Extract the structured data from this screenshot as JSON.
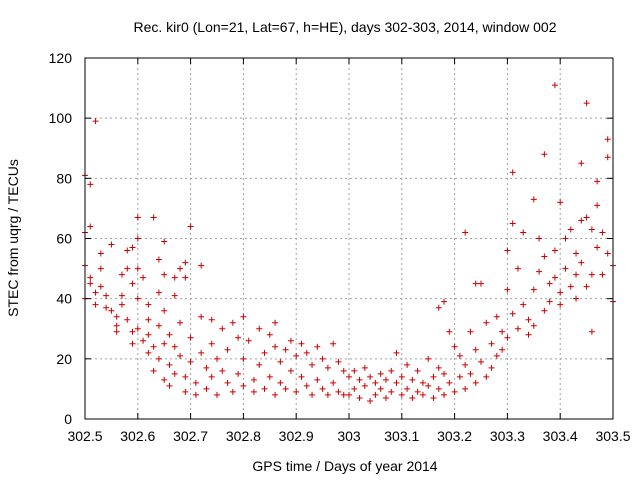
{
  "chart_data": {
    "type": "scatter",
    "title": "Rec. kir0 (Lon=21, Lat=67, h=HE), days 302-303, 2014, window 002",
    "xlabel": "GPS time / Days of year 2014",
    "ylabel": "STEC from uqrg / TECUs",
    "xlim": [
      302.5,
      303.5
    ],
    "ylim": [
      0,
      120
    ],
    "xticks": [
      "302.5",
      "302.6",
      "302.7",
      "302.8",
      "302.9",
      "303",
      "303.1",
      "303.2",
      "303.3",
      "303.4",
      "303.5"
    ],
    "yticks": [
      "0",
      "20",
      "40",
      "60",
      "80",
      "100",
      "120"
    ],
    "grid": true,
    "marker": "+",
    "color": "#cc0000",
    "points": [
      [
        302.5,
        81
      ],
      [
        302.51,
        78
      ],
      [
        302.51,
        64
      ],
      [
        302.5,
        62
      ],
      [
        302.52,
        99
      ],
      [
        302.5,
        51
      ],
      [
        302.51,
        47
      ],
      [
        302.51,
        45
      ],
      [
        302.52,
        42
      ],
      [
        302.5,
        40
      ],
      [
        302.52,
        38
      ],
      [
        302.53,
        55
      ],
      [
        302.53,
        50
      ],
      [
        302.53,
        44
      ],
      [
        302.54,
        41
      ],
      [
        302.54,
        37
      ],
      [
        302.55,
        58
      ],
      [
        302.55,
        36
      ],
      [
        302.56,
        34
      ],
      [
        302.56,
        31
      ],
      [
        302.57,
        48
      ],
      [
        302.57,
        41
      ],
      [
        302.58,
        56
      ],
      [
        302.58,
        50
      ],
      [
        302.58,
        33
      ],
      [
        302.59,
        57
      ],
      [
        302.59,
        45
      ],
      [
        302.59,
        29
      ],
      [
        302.59,
        25
      ],
      [
        302.6,
        67
      ],
      [
        302.6,
        60
      ],
      [
        302.6,
        50
      ],
      [
        302.6,
        40
      ],
      [
        302.6,
        30
      ],
      [
        302.61,
        26
      ],
      [
        302.61,
        47
      ],
      [
        302.62,
        38
      ],
      [
        302.62,
        33
      ],
      [
        302.62,
        22
      ],
      [
        302.63,
        67
      ],
      [
        302.63,
        24
      ],
      [
        302.63,
        16
      ],
      [
        302.64,
        53
      ],
      [
        302.64,
        42
      ],
      [
        302.64,
        31
      ],
      [
        302.64,
        20
      ],
      [
        302.65,
        59
      ],
      [
        302.65,
        48
      ],
      [
        302.65,
        36
      ],
      [
        302.65,
        13
      ],
      [
        302.66,
        28
      ],
      [
        302.66,
        18
      ],
      [
        302.66,
        11
      ],
      [
        302.67,
        47
      ],
      [
        302.67,
        41
      ],
      [
        302.67,
        24
      ],
      [
        302.67,
        15
      ],
      [
        302.68,
        50
      ],
      [
        302.68,
        32
      ],
      [
        302.68,
        21
      ],
      [
        302.69,
        52
      ],
      [
        302.69,
        47
      ],
      [
        302.69,
        14
      ],
      [
        302.69,
        9
      ],
      [
        302.7,
        64
      ],
      [
        302.7,
        27
      ],
      [
        302.7,
        19
      ],
      [
        302.71,
        12
      ],
      [
        302.71,
        8
      ],
      [
        302.72,
        51
      ],
      [
        302.72,
        34
      ],
      [
        302.72,
        22
      ],
      [
        302.73,
        17
      ],
      [
        302.73,
        10
      ],
      [
        302.74,
        33
      ],
      [
        302.74,
        25
      ],
      [
        302.74,
        14
      ],
      [
        302.75,
        8
      ],
      [
        302.75,
        20
      ],
      [
        302.76,
        30
      ],
      [
        302.76,
        16
      ],
      [
        302.77,
        12
      ],
      [
        302.77,
        23
      ],
      [
        302.78,
        32
      ],
      [
        302.78,
        9
      ],
      [
        302.79,
        27
      ],
      [
        302.79,
        15
      ],
      [
        302.8,
        34
      ],
      [
        302.8,
        20
      ],
      [
        302.8,
        11
      ],
      [
        302.81,
        26
      ],
      [
        302.82,
        13
      ],
      [
        302.82,
        9
      ],
      [
        302.83,
        30
      ],
      [
        302.83,
        18
      ],
      [
        302.84,
        22
      ],
      [
        302.84,
        10
      ],
      [
        302.85,
        28
      ],
      [
        302.85,
        14
      ],
      [
        302.86,
        32
      ],
      [
        302.86,
        24
      ],
      [
        302.86,
        8
      ],
      [
        302.87,
        19
      ],
      [
        302.87,
        12
      ],
      [
        302.88,
        23
      ],
      [
        302.88,
        10
      ],
      [
        302.89,
        26
      ],
      [
        302.89,
        16
      ],
      [
        302.9,
        21
      ],
      [
        302.9,
        9
      ],
      [
        302.91,
        25
      ],
      [
        302.91,
        14
      ],
      [
        302.92,
        11
      ],
      [
        302.92,
        22
      ],
      [
        302.93,
        18
      ],
      [
        302.93,
        8
      ],
      [
        302.94,
        24
      ],
      [
        302.94,
        13
      ],
      [
        302.95,
        20
      ],
      [
        302.95,
        10
      ],
      [
        302.96,
        17
      ],
      [
        302.96,
        8
      ],
      [
        302.97,
        25
      ],
      [
        302.97,
        12
      ],
      [
        302.98,
        19
      ],
      [
        302.98,
        9
      ],
      [
        302.99,
        16
      ],
      [
        302.99,
        8
      ],
      [
        303.0,
        14
      ],
      [
        303.0,
        8
      ],
      [
        303.01,
        16
      ],
      [
        303.01,
        10
      ],
      [
        303.02,
        13
      ],
      [
        303.02,
        7
      ],
      [
        303.03,
        17
      ],
      [
        303.03,
        11
      ],
      [
        303.04,
        14
      ],
      [
        303.04,
        6
      ],
      [
        303.05,
        12
      ],
      [
        303.05,
        8
      ],
      [
        303.06,
        15
      ],
      [
        303.06,
        10
      ],
      [
        303.07,
        13
      ],
      [
        303.07,
        7
      ],
      [
        303.08,
        16
      ],
      [
        303.08,
        9
      ],
      [
        303.09,
        22
      ],
      [
        303.09,
        12
      ],
      [
        303.1,
        14
      ],
      [
        303.1,
        8
      ],
      [
        303.11,
        18
      ],
      [
        303.11,
        10
      ],
      [
        303.12,
        13
      ],
      [
        303.12,
        7
      ],
      [
        303.13,
        16
      ],
      [
        303.13,
        9
      ],
      [
        303.14,
        12
      ],
      [
        303.14,
        8
      ],
      [
        303.15,
        20
      ],
      [
        303.15,
        11
      ],
      [
        303.16,
        14
      ],
      [
        303.16,
        7
      ],
      [
        303.17,
        37
      ],
      [
        303.17,
        17
      ],
      [
        303.17,
        10
      ],
      [
        303.18,
        39
      ],
      [
        303.18,
        15
      ],
      [
        303.18,
        8
      ],
      [
        303.19,
        29
      ],
      [
        303.19,
        12
      ],
      [
        303.2,
        24
      ],
      [
        303.2,
        9
      ],
      [
        303.21,
        21
      ],
      [
        303.21,
        14
      ],
      [
        303.22,
        62
      ],
      [
        303.22,
        18
      ],
      [
        303.22,
        10
      ],
      [
        303.23,
        29
      ],
      [
        303.23,
        15
      ],
      [
        303.24,
        45
      ],
      [
        303.24,
        23
      ],
      [
        303.24,
        12
      ],
      [
        303.25,
        45
      ],
      [
        303.25,
        19
      ],
      [
        303.26,
        32
      ],
      [
        303.26,
        14
      ],
      [
        303.27,
        25
      ],
      [
        303.27,
        17
      ],
      [
        303.28,
        34
      ],
      [
        303.28,
        21
      ],
      [
        303.29,
        29
      ],
      [
        303.29,
        23
      ],
      [
        303.3,
        56
      ],
      [
        303.3,
        43
      ],
      [
        303.3,
        27
      ],
      [
        303.31,
        82
      ],
      [
        303.31,
        65
      ],
      [
        303.31,
        35
      ],
      [
        303.32,
        50
      ],
      [
        303.32,
        30
      ],
      [
        303.33,
        62
      ],
      [
        303.33,
        38
      ],
      [
        303.34,
        28
      ],
      [
        303.35,
        73
      ],
      [
        303.35,
        43
      ],
      [
        303.35,
        31
      ],
      [
        303.36,
        60
      ],
      [
        303.36,
        49
      ],
      [
        303.37,
        88
      ],
      [
        303.37,
        54
      ],
      [
        303.37,
        36
      ],
      [
        303.38,
        45
      ],
      [
        303.38,
        39
      ],
      [
        303.39,
        111
      ],
      [
        303.39,
        56
      ],
      [
        303.39,
        47
      ],
      [
        303.4,
        72
      ],
      [
        303.4,
        42
      ],
      [
        303.41,
        60
      ],
      [
        303.41,
        50
      ],
      [
        303.42,
        63
      ],
      [
        303.42,
        44
      ],
      [
        303.43,
        48
      ],
      [
        303.43,
        40
      ],
      [
        303.44,
        85
      ],
      [
        303.44,
        66
      ],
      [
        303.44,
        52
      ],
      [
        303.45,
        105
      ],
      [
        303.45,
        67
      ],
      [
        303.45,
        44
      ],
      [
        303.46,
        63
      ],
      [
        303.46,
        29
      ],
      [
        303.47,
        79
      ],
      [
        303.47,
        71
      ],
      [
        303.47,
        57
      ],
      [
        303.48,
        62
      ],
      [
        303.48,
        48
      ],
      [
        303.49,
        93
      ],
      [
        303.49,
        87
      ],
      [
        303.49,
        55
      ],
      [
        303.5,
        51
      ],
      [
        303.5,
        39
      ],
      [
        303.46,
        48
      ],
      [
        303.43,
        55
      ],
      [
        303.4,
        38
      ],
      [
        303.34,
        33
      ],
      [
        302.57,
        38
      ],
      [
        302.62,
        28
      ],
      [
        302.65,
        25
      ],
      [
        302.56,
        29
      ]
    ]
  }
}
